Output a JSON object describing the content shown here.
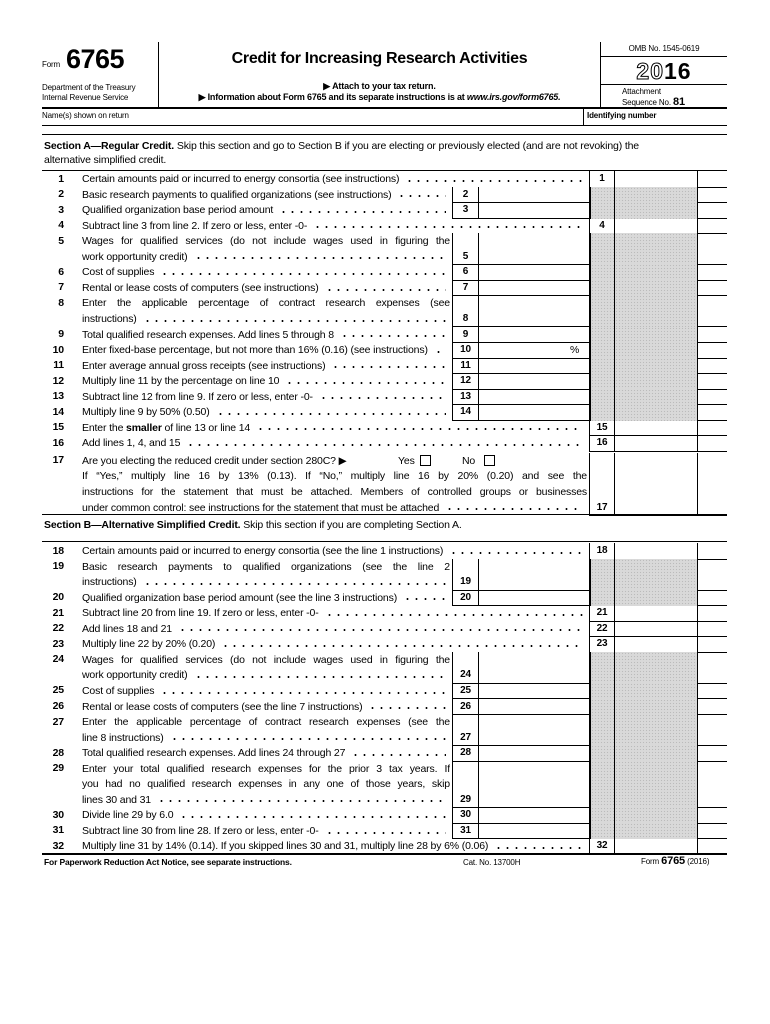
{
  "header": {
    "form_label": "Form",
    "form_number": "6765",
    "dept": [
      "Department of the Treasury",
      "Internal Revenue Service"
    ],
    "title": "Credit for Increasing Research Activities",
    "attach": "▶ Attach to your tax return.",
    "info": "▶ Information about Form 6765 and its separate instructions is at ",
    "info_url": "www.irs.gov/form6765.",
    "omb": "OMB No. 1545-0619",
    "year_outline": "20",
    "year_bold": "16",
    "attachment": "Attachment",
    "sequence": "Sequence No.",
    "sequence_number": "81",
    "name_label": "Name(s) shown on return",
    "id_label": "Identifying number"
  },
  "sections": [
    {
      "title": "Section A—Regular Credit.",
      "text": [
        "Skip this section and go to Section B if you are electing or previously elected (and are not revoking) the",
        "alternative simplified credit."
      ],
      "lines": [
        {
          "num": "1",
          "text": [
            "Certain amounts paid or incurred to energy consortia (see instructions)"
          ],
          "box": "1",
          "col": "outer"
        },
        {
          "num": "2",
          "text": [
            "Basic research payments to qualified organizations (see instructions)"
          ],
          "box": "2",
          "col": "inner"
        },
        {
          "num": "3",
          "text": [
            "Qualified organization base period amount"
          ],
          "box": "3",
          "col": "inner"
        },
        {
          "num": "4",
          "text": [
            "Subtract line 3 from line 2. If zero or less, enter -0-"
          ],
          "box": "4",
          "col": "outer"
        },
        {
          "num": "5",
          "text": [
            "Wages for qualified services (do not include wages used in figuring the",
            "work opportunity credit)"
          ],
          "box": "5",
          "col": "inner"
        },
        {
          "num": "6",
          "text": [
            "Cost of supplies"
          ],
          "box": "6",
          "col": "inner"
        },
        {
          "num": "7",
          "text": [
            "Rental or lease costs of computers (see instructions)"
          ],
          "box": "7",
          "col": "inner"
        },
        {
          "num": "8",
          "text": [
            "Enter the applicable percentage of contract research expenses (see",
            "instructions)"
          ],
          "box": "8",
          "col": "inner"
        },
        {
          "num": "9",
          "text": [
            "Total qualified research expenses. Add lines 5 through 8"
          ],
          "box": "9",
          "col": "inner"
        },
        {
          "num": "10",
          "text": [
            "Enter fixed-base percentage, but not more than 16% (0.16) (see instructions)"
          ],
          "box": "10",
          "col": "inner",
          "unit": "%"
        },
        {
          "num": "11",
          "text": [
            "Enter average annual gross receipts (see instructions)"
          ],
          "box": "11",
          "col": "inner"
        },
        {
          "num": "12",
          "text": [
            "Multiply line 11 by the percentage on line 10"
          ],
          "box": "12",
          "col": "inner"
        },
        {
          "num": "13",
          "text": [
            "Subtract line 12 from line 9. If zero or less, enter -0-"
          ],
          "box": "13",
          "col": "inner"
        },
        {
          "num": "14",
          "text": [
            "Multiply line 9 by 50% (0.50)"
          ],
          "box": "14",
          "col": "inner"
        },
        {
          "num": "15",
          "text": [
            [
              "Enter the ",
              {
                "b": "smaller"
              },
              " of line 13 or line 14"
            ]
          ],
          "box": "15",
          "col": "outer"
        },
        {
          "num": "16",
          "text": [
            "Add lines 1, 4, and 15"
          ],
          "box": "16",
          "col": "outer"
        },
        {
          "num": "17",
          "text": [
            "Are you electing the reduced credit under section 280C? ▶",
            "If “Yes,” multiply line 16 by 13% (0.13). If “No,” multiply line 16 by 20% (0.20) and see the",
            "instructions for the statement that must be attached. Members of controlled groups or businesses",
            "under common control: see instructions for the statement that must be attached"
          ],
          "box": "17",
          "col": "outer",
          "yes": "Yes",
          "no": "No"
        }
      ]
    },
    {
      "title": "Section B—Alternative Simplified Credit.",
      "text": [
        "Skip this section if you are completing Section A."
      ],
      "lines": [
        {
          "num": "18",
          "text": [
            "Certain amounts paid or incurred to energy consortia (see the line 1 instructions)"
          ],
          "box": "18",
          "col": "outer"
        },
        {
          "num": "19",
          "text": [
            "Basic research payments to qualified organizations (see the line 2",
            "instructions)"
          ],
          "box": "19",
          "col": "inner"
        },
        {
          "num": "20",
          "text": [
            "Qualified organization base period amount (see the line 3 instructions)"
          ],
          "box": "20",
          "col": "inner"
        },
        {
          "num": "21",
          "text": [
            "Subtract line 20 from line 19. If zero or less, enter -0-"
          ],
          "box": "21",
          "col": "outer"
        },
        {
          "num": "22",
          "text": [
            "Add lines 18 and 21"
          ],
          "box": "22",
          "col": "outer"
        },
        {
          "num": "23",
          "text": [
            "Multiply line 22 by 20% (0.20)"
          ],
          "box": "23",
          "col": "outer"
        },
        {
          "num": "24",
          "text": [
            "Wages for qualified services (do not include wages used in figuring the",
            "work opportunity credit)"
          ],
          "box": "24",
          "col": "inner"
        },
        {
          "num": "25",
          "text": [
            "Cost of supplies"
          ],
          "box": "25",
          "col": "inner"
        },
        {
          "num": "26",
          "text": [
            "Rental or lease costs of computers (see the line 7 instructions)"
          ],
          "box": "26",
          "col": "inner"
        },
        {
          "num": "27",
          "text": [
            "Enter the applicable percentage of contract research expenses (see the",
            "line 8 instructions)"
          ],
          "box": "27",
          "col": "inner"
        },
        {
          "num": "28",
          "text": [
            "Total qualified research expenses. Add lines 24 through 27"
          ],
          "box": "28",
          "col": "inner"
        },
        {
          "num": "29",
          "text": [
            "Enter your total qualified research expenses for the prior 3 tax years. If",
            "you had no qualified research expenses in any one of those years, skip",
            "lines 30 and 31"
          ],
          "box": "29",
          "col": "inner"
        },
        {
          "num": "30",
          "text": [
            "Divide line 29 by 6.0"
          ],
          "box": "30",
          "col": "inner"
        },
        {
          "num": "31",
          "text": [
            "Subtract line 30 from line 28. If zero or less, enter -0-"
          ],
          "box": "31",
          "col": "inner"
        },
        {
          "num": "32",
          "text": [
            "Multiply line 31 by 14% (0.14). If you skipped lines 30 and 31, multiply line 28 by 6% (0.06)"
          ],
          "box": "32",
          "col": "outer"
        }
      ]
    }
  ],
  "footer": {
    "notice": "For Paperwork Reduction Act Notice, see separate instructions.",
    "cat": "Cat. No. 13700H",
    "form_label": "Form",
    "form_number": "6765",
    "year": "(2016)"
  }
}
